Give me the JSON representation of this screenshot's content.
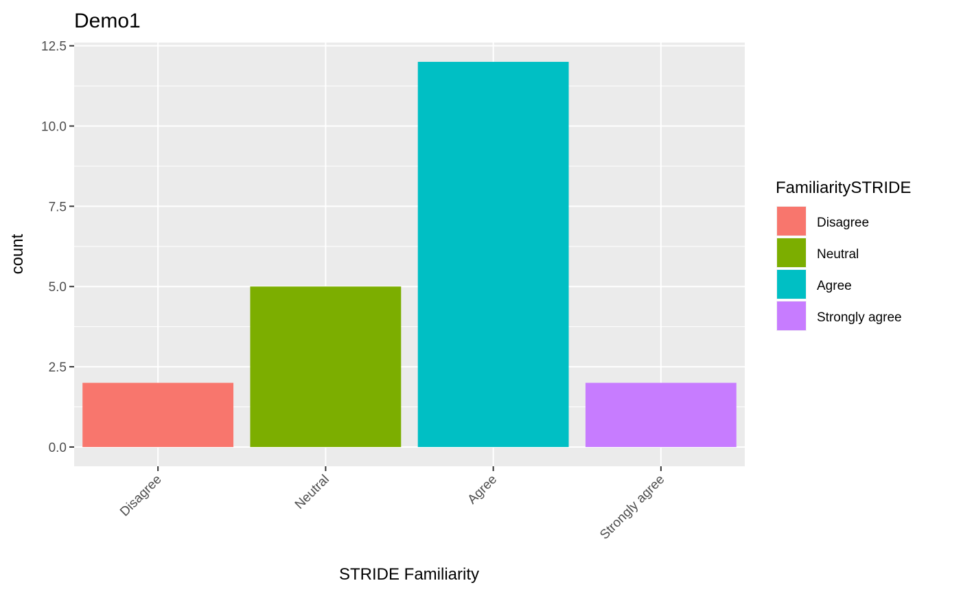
{
  "chart_data": {
    "type": "bar",
    "title": "Demo1",
    "xlabel": "STRIDE Familiarity",
    "ylabel": "count",
    "categories": [
      "Disagree",
      "Neutral",
      "Agree",
      "Strongly agree"
    ],
    "values": [
      2,
      5,
      12,
      2
    ],
    "colors": [
      "#F8766D",
      "#7CAE00",
      "#00BFC4",
      "#C77CFF"
    ],
    "ylim": [
      -0.6,
      12.6
    ],
    "yticks": [
      0.0,
      2.5,
      5.0,
      7.5,
      10.0,
      12.5
    ],
    "ytick_labels": [
      "0.0",
      "2.5",
      "5.0",
      "7.5",
      "10.0",
      "12.5"
    ],
    "grid": true,
    "legend": {
      "title": "FamiliaritySTRIDE",
      "placement": "right",
      "entries": [
        "Disagree",
        "Neutral",
        "Agree",
        "Strongly agree"
      ]
    }
  }
}
